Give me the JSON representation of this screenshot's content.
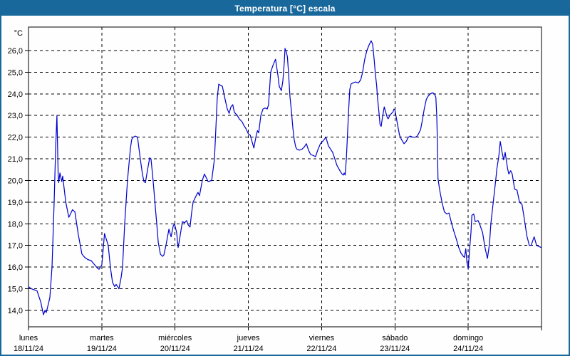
{
  "window": {
    "title": "Temperatura [°C] escala"
  },
  "colors": {
    "titlebar": "#19689c",
    "window_border": "#19689c",
    "line": "#0000cd",
    "grid": "#000000",
    "background": "#fdfefd"
  },
  "chart_data": {
    "type": "line",
    "title": "Temperatura [°C] escala",
    "ylabel": "°C",
    "y_unit_label": "°C",
    "ylim": [
      13.2,
      27.1
    ],
    "y_ticks": [
      26,
      25,
      24,
      23,
      22,
      21,
      20,
      19,
      18,
      17,
      16,
      15,
      14
    ],
    "y_tick_labels": [
      "26,0",
      "25,0",
      "24,0",
      "23,0",
      "22,0",
      "21,0",
      "20,0",
      "19,0",
      "18,0",
      "17,0",
      "16,0",
      "15,0",
      "14,0"
    ],
    "grid": "dashed",
    "x_unit": "hours since lunes 18/11/24 00:00",
    "x_total_hours": 168,
    "days": [
      {
        "name": "lunes",
        "date": "18/11/24"
      },
      {
        "name": "martes",
        "date": "19/11/24"
      },
      {
        "name": "miércoles",
        "date": "20/11/24"
      },
      {
        "name": "jueves",
        "date": "21/11/24"
      },
      {
        "name": "viernes",
        "date": "22/11/24"
      },
      {
        "name": "sábado",
        "date": "23/11/24"
      },
      {
        "name": "domingo",
        "date": "24/11/24"
      }
    ],
    "series": [
      {
        "name": "Temperatura [°C]",
        "color": "#0000cd",
        "points": [
          [
            0,
            15.1
          ],
          [
            0.9,
            15.0
          ],
          [
            1.9,
            14.95
          ],
          [
            2.8,
            14.9
          ],
          [
            4,
            14.4
          ],
          [
            4.9,
            13.8
          ],
          [
            5.4,
            14.0
          ],
          [
            5.8,
            13.9
          ],
          [
            6.5,
            14.3
          ],
          [
            7,
            14.6
          ],
          [
            7.7,
            16.0
          ],
          [
            8.4,
            19.0
          ],
          [
            8.9,
            21.5
          ],
          [
            9.3,
            23.0
          ],
          [
            9.7,
            20.3
          ],
          [
            9.9,
            19.9
          ],
          [
            10.3,
            20.35
          ],
          [
            10.9,
            19.95
          ],
          [
            11.2,
            20.2
          ],
          [
            12.2,
            19.0
          ],
          [
            13.2,
            18.3
          ],
          [
            14.4,
            18.65
          ],
          [
            15.2,
            18.55
          ],
          [
            16.3,
            17.5
          ],
          [
            17.5,
            16.6
          ],
          [
            18.4,
            16.45
          ],
          [
            19.4,
            16.35
          ],
          [
            20.5,
            16.3
          ],
          [
            21.7,
            16.1
          ],
          [
            22.6,
            15.95
          ],
          [
            23.1,
            15.9
          ],
          [
            24,
            16.1
          ],
          [
            24.9,
            17.55
          ],
          [
            26.1,
            17.0
          ],
          [
            26.8,
            16.0
          ],
          [
            27.5,
            15.3
          ],
          [
            28.2,
            15.1
          ],
          [
            28.7,
            15.2
          ],
          [
            29.2,
            15.1
          ],
          [
            29.6,
            15.0
          ],
          [
            30.3,
            15.5
          ],
          [
            30.8,
            16.0
          ],
          [
            31.5,
            18.0
          ],
          [
            32.4,
            20.0
          ],
          [
            33.4,
            21.5
          ],
          [
            33.8,
            21.9
          ],
          [
            34.3,
            22.0
          ],
          [
            35,
            22.05
          ],
          [
            35.7,
            22.0
          ],
          [
            36.6,
            21.0
          ],
          [
            37.3,
            20.3
          ],
          [
            37.8,
            19.95
          ],
          [
            38.3,
            19.9
          ],
          [
            39,
            20.5
          ],
          [
            39.7,
            21.05
          ],
          [
            40.1,
            21.0
          ],
          [
            40.8,
            20.0
          ],
          [
            41.4,
            19.0
          ],
          [
            42,
            18.0
          ],
          [
            42.5,
            17.15
          ],
          [
            43.2,
            16.6
          ],
          [
            43.9,
            16.5
          ],
          [
            44.3,
            16.55
          ],
          [
            45,
            17.0
          ],
          [
            46,
            17.75
          ],
          [
            46.7,
            17.4
          ],
          [
            47.4,
            17.9
          ],
          [
            47.8,
            18.0
          ],
          [
            48.5,
            17.6
          ],
          [
            49,
            16.9
          ],
          [
            49.5,
            17.3
          ],
          [
            50.4,
            18.1
          ],
          [
            51.1,
            18.05
          ],
          [
            51.8,
            18.15
          ],
          [
            52.3,
            17.95
          ],
          [
            52.9,
            17.85
          ],
          [
            53.4,
            18.5
          ],
          [
            53.9,
            19.0
          ],
          [
            55.1,
            19.35
          ],
          [
            55.5,
            19.45
          ],
          [
            56,
            19.3
          ],
          [
            56.9,
            20.0
          ],
          [
            57.6,
            20.3
          ],
          [
            58.3,
            20.1
          ],
          [
            58.8,
            19.95
          ],
          [
            60,
            20.0
          ],
          [
            60.9,
            21.0
          ],
          [
            61.4,
            22.5
          ],
          [
            61.8,
            23.8
          ],
          [
            62.3,
            24.45
          ],
          [
            62.8,
            24.4
          ],
          [
            63.5,
            24.35
          ],
          [
            64,
            24.0
          ],
          [
            64.6,
            23.6
          ],
          [
            65.1,
            23.3
          ],
          [
            65.7,
            23.1
          ],
          [
            66.3,
            23.4
          ],
          [
            66.9,
            23.5
          ],
          [
            67.4,
            23.15
          ],
          [
            68.4,
            23.0
          ],
          [
            69,
            22.85
          ],
          [
            70,
            22.7
          ],
          [
            70.5,
            22.55
          ],
          [
            71.2,
            22.4
          ],
          [
            72,
            22.15
          ],
          [
            72.6,
            22.1
          ],
          [
            73.2,
            21.8
          ],
          [
            73.8,
            21.5
          ],
          [
            74.6,
            22.1
          ],
          [
            75,
            22.3
          ],
          [
            75.4,
            22.2
          ],
          [
            76.1,
            23.0
          ],
          [
            76.8,
            23.3
          ],
          [
            77.5,
            23.35
          ],
          [
            78.2,
            23.3
          ],
          [
            78.6,
            23.5
          ],
          [
            79.3,
            25.0
          ],
          [
            80,
            25.3
          ],
          [
            80.9,
            25.6
          ],
          [
            81.7,
            24.85
          ],
          [
            82.1,
            24.35
          ],
          [
            82.8,
            24.15
          ],
          [
            83.3,
            24.6
          ],
          [
            83.8,
            25.5
          ],
          [
            84,
            26.1
          ],
          [
            84.5,
            25.9
          ],
          [
            84.8,
            25.7
          ],
          [
            85.2,
            24.9
          ],
          [
            85.6,
            23.9
          ],
          [
            86.1,
            23.2
          ],
          [
            86.6,
            22.4
          ],
          [
            87,
            21.9
          ],
          [
            87.5,
            21.55
          ],
          [
            87.9,
            21.45
          ],
          [
            88.7,
            21.4
          ],
          [
            89.6,
            21.45
          ],
          [
            90.3,
            21.55
          ],
          [
            91,
            21.7
          ],
          [
            91.7,
            21.4
          ],
          [
            92.4,
            21.2
          ],
          [
            93.3,
            21.15
          ],
          [
            94,
            21.1
          ],
          [
            94.7,
            21.4
          ],
          [
            95.6,
            21.7
          ],
          [
            96.6,
            21.85
          ],
          [
            97.4,
            22.0
          ],
          [
            98.2,
            21.6
          ],
          [
            98.9,
            21.45
          ],
          [
            99.6,
            21.3
          ],
          [
            100.3,
            21.0
          ],
          [
            101,
            20.7
          ],
          [
            102,
            20.45
          ],
          [
            102.7,
            20.3
          ],
          [
            103.1,
            20.25
          ],
          [
            103.4,
            20.35
          ],
          [
            103.7,
            20.25
          ],
          [
            104.1,
            21.0
          ],
          [
            104.4,
            21.9
          ],
          [
            104.8,
            23.1
          ],
          [
            105.2,
            24.2
          ],
          [
            105.6,
            24.45
          ],
          [
            106.2,
            24.5
          ],
          [
            107.1,
            24.55
          ],
          [
            108,
            24.5
          ],
          [
            108.8,
            24.65
          ],
          [
            109.4,
            25.0
          ],
          [
            110.1,
            25.6
          ],
          [
            110.8,
            26.0
          ],
          [
            111.5,
            26.25
          ],
          [
            112.2,
            26.45
          ],
          [
            112.7,
            26.3
          ],
          [
            113.2,
            25.6
          ],
          [
            113.6,
            24.9
          ],
          [
            114,
            24.4
          ],
          [
            114.3,
            23.8
          ],
          [
            114.8,
            23.1
          ],
          [
            115.1,
            22.6
          ],
          [
            115.5,
            22.5
          ],
          [
            115.9,
            22.9
          ],
          [
            116.5,
            23.4
          ],
          [
            117,
            23.15
          ],
          [
            117.5,
            22.9
          ],
          [
            117.8,
            22.85
          ],
          [
            118.3,
            23.0
          ],
          [
            118.9,
            23.1
          ],
          [
            119.3,
            23.15
          ],
          [
            119.7,
            23.3
          ],
          [
            120,
            23.25
          ],
          [
            120.7,
            22.7
          ],
          [
            121.5,
            22.1
          ],
          [
            122.1,
            21.9
          ],
          [
            123,
            21.7
          ],
          [
            123.7,
            21.8
          ],
          [
            124.4,
            22.0
          ],
          [
            125,
            22.05
          ],
          [
            125.8,
            22.0
          ],
          [
            126.7,
            22.0
          ],
          [
            127.3,
            22.05
          ],
          [
            127.9,
            22.2
          ],
          [
            128.4,
            22.35
          ],
          [
            129,
            22.8
          ],
          [
            129.6,
            23.3
          ],
          [
            130.3,
            23.75
          ],
          [
            130.9,
            23.9
          ],
          [
            131.6,
            24.0
          ],
          [
            132.3,
            24.05
          ],
          [
            132.9,
            24.0
          ],
          [
            133.4,
            23.85
          ],
          [
            133.7,
            22.95
          ],
          [
            133.9,
            21.8
          ],
          [
            134.1,
            20.1
          ],
          [
            134.6,
            19.6
          ],
          [
            135,
            19.3
          ],
          [
            135.4,
            19.0
          ],
          [
            136.2,
            18.55
          ],
          [
            137,
            18.45
          ],
          [
            137.7,
            18.5
          ],
          [
            138.5,
            18.05
          ],
          [
            139.3,
            17.65
          ],
          [
            140.1,
            17.3
          ],
          [
            140.9,
            16.9
          ],
          [
            141.6,
            16.65
          ],
          [
            142.4,
            16.5
          ],
          [
            142.8,
            16.45
          ],
          [
            143.2,
            16.85
          ],
          [
            143.6,
            16.2
          ],
          [
            143.8,
            16.1
          ],
          [
            144,
            15.9
          ],
          [
            144.5,
            16.9
          ],
          [
            144.9,
            17.6
          ],
          [
            145.2,
            18.4
          ],
          [
            145.8,
            18.45
          ],
          [
            146.3,
            18.1
          ],
          [
            147.2,
            18.15
          ],
          [
            147.7,
            18.0
          ],
          [
            148.7,
            17.6
          ],
          [
            149.5,
            16.9
          ],
          [
            150.3,
            16.4
          ],
          [
            151,
            17.1
          ],
          [
            151.4,
            18.0
          ],
          [
            152.2,
            19.0
          ],
          [
            153,
            20.0
          ],
          [
            153.4,
            20.55
          ],
          [
            154,
            21.1
          ],
          [
            154.5,
            21.8
          ],
          [
            155.1,
            21.3
          ],
          [
            155.6,
            20.95
          ],
          [
            156.1,
            21.3
          ],
          [
            156.9,
            20.55
          ],
          [
            157.3,
            20.3
          ],
          [
            157.9,
            20.45
          ],
          [
            158.4,
            20.3
          ],
          [
            159.2,
            19.6
          ],
          [
            160,
            19.55
          ],
          [
            160.8,
            19.0
          ],
          [
            161.6,
            18.9
          ],
          [
            162.4,
            18.2
          ],
          [
            163.2,
            17.45
          ],
          [
            164,
            17.0
          ],
          [
            164.6,
            17.0
          ],
          [
            165.6,
            17.4
          ],
          [
            166.4,
            17.0
          ],
          [
            167.2,
            16.95
          ],
          [
            168,
            16.9
          ]
        ]
      }
    ]
  }
}
